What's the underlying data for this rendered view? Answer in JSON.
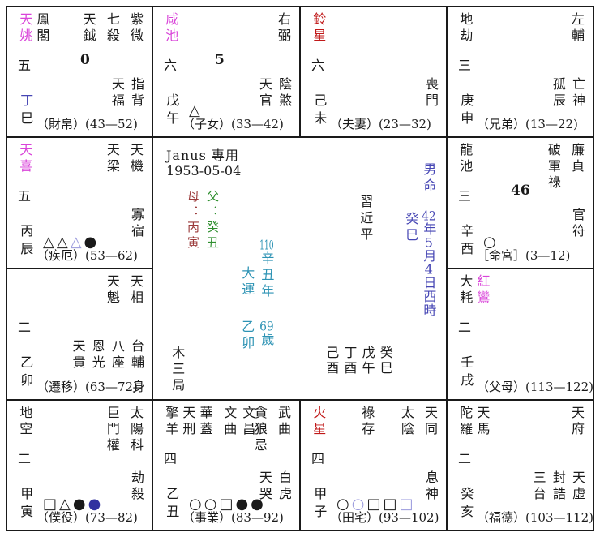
{
  "colors": {
    "ink": "#1a1a1a",
    "magenta": "#d944d9",
    "red": "#c01818",
    "purple": "#4646b4",
    "teal": "#2d93b4",
    "maroon": "#9b3a3a",
    "green": "#2f8f2f",
    "indigo": "#3232a0",
    "light_purple": "#9898dc"
  },
  "center": {
    "title": "Janus 專用",
    "dob": "1953-05-04",
    "mother": "母：丙寅",
    "father": "父：癸丑",
    "name": "習近平",
    "gender": "男命",
    "year_pillar": "癸巳",
    "birth": {
      "y": "42",
      "y_u": "年",
      "m": "5",
      "m_u": "月",
      "d": "4",
      "d_u": "日酉時"
    },
    "dayun": {
      "label": "大運",
      "year_num": "110",
      "year": "辛丑年"
    },
    "age": {
      "pillar": "乙卯",
      "num": "69",
      "suffix": "歲"
    },
    "wuju": "木三局",
    "pillars": [
      "己酉",
      "丁酉",
      "戊午",
      "癸巳"
    ]
  },
  "palaces": {
    "si": {
      "left_stars": [
        {
          "text": "天姚",
          "color": "#d944d9"
        },
        {
          "text": "鳳閣"
        }
      ],
      "main_stars": [
        {
          "text": "天鉞"
        },
        {
          "text": "七殺"
        },
        {
          "text": "紫微"
        }
      ],
      "level": "五",
      "big_num": "0",
      "right_stars": [
        {
          "text": "天福"
        },
        {
          "text": "指背"
        }
      ],
      "stem": "丁",
      "stem_color": "#4646b4",
      "branch": "巳",
      "symbols": [],
      "label": "（財帛）(43—52)",
      "body": ""
    },
    "wu": {
      "left_stars": [
        {
          "text": "咸池",
          "color": "#d944d9"
        }
      ],
      "main_stars": [
        {
          "text": "右弼"
        }
      ],
      "level": "六",
      "big_num": "5",
      "right_stars": [
        {
          "text": "天官"
        },
        {
          "text": "陰煞"
        }
      ],
      "stem": "戊",
      "stem_color": "#1a1a1a",
      "branch": "午",
      "symbols": [
        {
          "glyph": "△",
          "color": "#1a1a1a"
        }
      ],
      "label": "（子女）(33—42)",
      "body": ""
    },
    "wei": {
      "left_stars": [
        {
          "text": "鈴星",
          "color": "#c01818"
        }
      ],
      "main_stars": [],
      "level": "六",
      "big_num": "",
      "right_stars": [
        {
          "text": "喪門"
        }
      ],
      "stem": "己",
      "stem_color": "#1a1a1a",
      "branch": "未",
      "symbols": [],
      "label": "（夫妻）(23—32)",
      "body": ""
    },
    "shen": {
      "left_stars": [
        {
          "text": "地劫"
        }
      ],
      "main_stars": [
        {
          "text": "左輔"
        }
      ],
      "level": "三",
      "big_num": "",
      "right_stars": [
        {
          "text": "孤辰"
        },
        {
          "text": "亡神"
        }
      ],
      "stem": "庚",
      "stem_color": "#1a1a1a",
      "branch": "申",
      "symbols": [],
      "label": "（兄弟）(13—22)",
      "body": ""
    },
    "chen": {
      "left_stars": [
        {
          "text": "天喜",
          "color": "#d944d9"
        }
      ],
      "main_stars": [
        {
          "text": "天梁"
        },
        {
          "text": "天機"
        }
      ],
      "level": "五",
      "big_num": "",
      "right_stars": [
        {
          "text": "寡宿"
        }
      ],
      "stem": "丙",
      "stem_color": "#1a1a1a",
      "branch": "辰",
      "symbols": [
        {
          "glyph": "△",
          "color": "#1a1a1a"
        },
        {
          "glyph": "△",
          "color": "#1a1a1a"
        },
        {
          "glyph": "△",
          "color": "#9898dc"
        },
        {
          "glyph": "●",
          "color": "#1a1a1a"
        }
      ],
      "label": "（疾厄）(53—62)",
      "body": ""
    },
    "you": {
      "left_stars": [
        {
          "text": "龍池"
        }
      ],
      "main_stars": [
        {
          "text": "破軍祿"
        },
        {
          "text": "廉貞"
        }
      ],
      "level": "三",
      "big_num": "46",
      "right_stars": [
        {
          "text": "官符"
        }
      ],
      "stem": "辛",
      "stem_color": "#1a1a1a",
      "branch": "酉",
      "symbols": [
        {
          "glyph": "○",
          "color": "#1a1a1a"
        }
      ],
      "label": "［命宮］(3—12)",
      "body": ""
    },
    "mao": {
      "left_stars": [],
      "main_stars": [
        {
          "text": "天魁"
        },
        {
          "text": "天相"
        }
      ],
      "level": "二",
      "big_num": "",
      "right_stars": [
        {
          "text": "天貴"
        },
        {
          "text": "恩光"
        },
        {
          "text": "八座"
        },
        {
          "text": "台輔"
        }
      ],
      "stem": "乙",
      "stem_color": "#1a1a1a",
      "branch": "卯",
      "symbols": [],
      "label": "（遷移）(63—72)",
      "body": "身"
    },
    "xu": {
      "left_stars": [
        {
          "text": "大耗"
        },
        {
          "text": "紅鸞",
          "color": "#d944d9"
        }
      ],
      "main_stars": [],
      "level": "二",
      "big_num": "",
      "right_stars": [],
      "stem": "壬",
      "stem_color": "#1a1a1a",
      "branch": "戌",
      "symbols": [],
      "label": "（父母）(113—122)",
      "body": ""
    },
    "yin": {
      "left_stars": [
        {
          "text": "地空"
        }
      ],
      "main_stars": [
        {
          "text": "巨門權"
        },
        {
          "text": "太陽科"
        }
      ],
      "level": "二",
      "big_num": "",
      "right_stars": [
        {
          "text": "劫殺"
        }
      ],
      "stem": "甲",
      "stem_color": "#1a1a1a",
      "branch": "寅",
      "symbols": [
        {
          "glyph": "□",
          "color": "#1a1a1a"
        },
        {
          "glyph": "△",
          "color": "#1a1a1a"
        },
        {
          "glyph": "●",
          "color": "#1a1a1a"
        },
        {
          "glyph": "●",
          "color": "#3232a0"
        }
      ],
      "label": "（僕役）(73—82)",
      "body": ""
    },
    "chou": {
      "left_stars": [
        {
          "text": "擎羊"
        },
        {
          "text": "天刑"
        },
        {
          "text": "華蓋"
        }
      ],
      "mid_stars": [
        {
          "text": "文曲"
        },
        {
          "text": "文昌"
        }
      ],
      "main_stars": [
        {
          "text": "貪狼忌"
        },
        {
          "text": "武曲"
        }
      ],
      "level": "四",
      "big_num": "",
      "right_stars": [
        {
          "text": "天哭"
        },
        {
          "text": "白虎"
        }
      ],
      "stem": "乙",
      "stem_color": "#1a1a1a",
      "branch": "丑",
      "symbols": [
        {
          "glyph": "○",
          "color": "#1a1a1a"
        },
        {
          "glyph": "○",
          "color": "#1a1a1a"
        },
        {
          "glyph": "□",
          "color": "#1a1a1a"
        },
        {
          "glyph": "●",
          "color": "#1a1a1a"
        },
        {
          "glyph": "●",
          "color": "#1a1a1a"
        }
      ],
      "label": "（事業）(83—92)",
      "body": ""
    },
    "zi": {
      "left_stars": [
        {
          "text": "火星",
          "color": "#c01818"
        }
      ],
      "mid_stars": [
        {
          "text": "祿存"
        }
      ],
      "main_stars": [
        {
          "text": "太陰"
        },
        {
          "text": "天同"
        }
      ],
      "level": "四",
      "big_num": "",
      "right_stars": [
        {
          "text": "息神"
        }
      ],
      "stem": "甲",
      "stem_color": "#1a1a1a",
      "branch": "子",
      "symbols": [
        {
          "glyph": "○",
          "color": "#1a1a1a"
        },
        {
          "glyph": "○",
          "color": "#9898dc"
        },
        {
          "glyph": "□",
          "color": "#1a1a1a"
        },
        {
          "glyph": "□",
          "color": "#1a1a1a"
        },
        {
          "glyph": "□",
          "color": "#9898dc"
        }
      ],
      "label": "（田宅）(93—102)",
      "body": ""
    },
    "hai": {
      "left_stars": [
        {
          "text": "陀羅"
        },
        {
          "text": "天馬"
        }
      ],
      "main_stars": [
        {
          "text": "天府"
        }
      ],
      "level": "二",
      "big_num": "",
      "right_stars": [
        {
          "text": "三台"
        },
        {
          "text": "封誥"
        },
        {
          "text": "天虛"
        }
      ],
      "stem": "癸",
      "stem_color": "#1a1a1a",
      "branch": "亥",
      "symbols": [],
      "label": "（福德）(103—112)",
      "body": ""
    }
  }
}
